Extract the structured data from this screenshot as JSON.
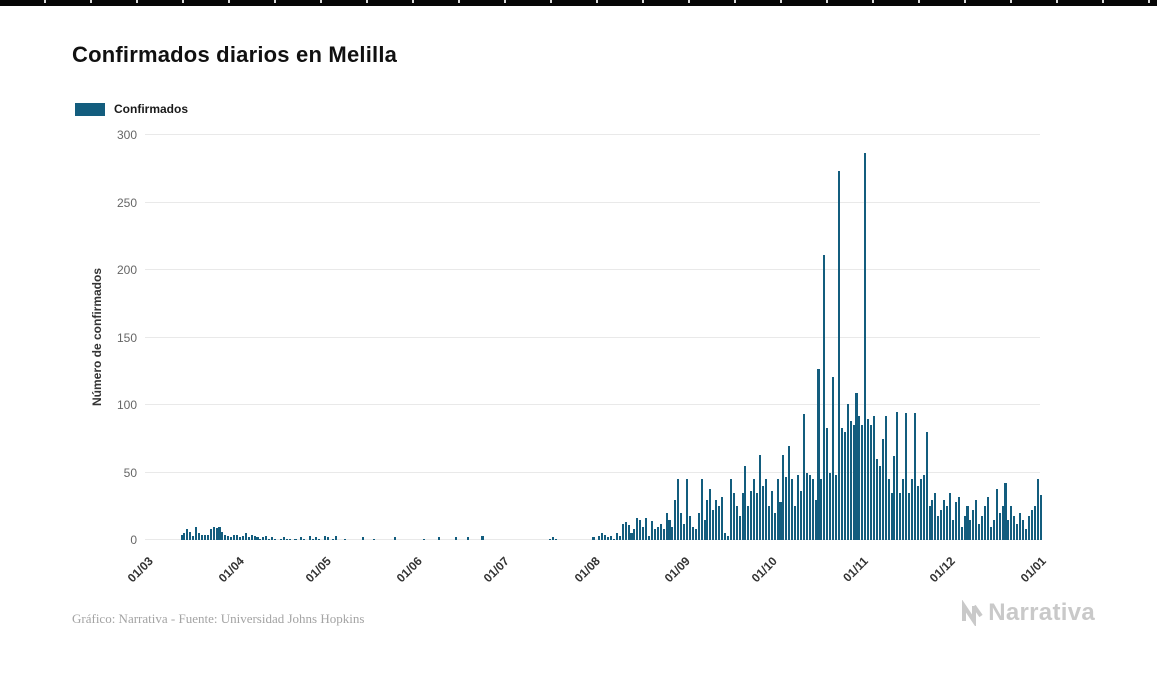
{
  "title": "Confirmados diarios en Melilla",
  "legend": {
    "label": "Confirmados",
    "color": "#135d7e"
  },
  "footer": {
    "credit": "Gráfico: Narrativa - Fuente: Universidad Johns Hopkins"
  },
  "logo": {
    "text": "Narrativa"
  },
  "chart_data": {
    "type": "bar",
    "title": "Confirmados diarios en Melilla",
    "xlabel": "",
    "ylabel": "Número de confirmados",
    "ylim": [
      0,
      300
    ],
    "yticks": [
      0,
      50,
      100,
      150,
      200,
      250,
      300
    ],
    "grid": true,
    "legend_position": "top-left",
    "bar_color": "#135d7e",
    "x_start_date": "01/03",
    "x_tick_labels": [
      "01/03",
      "01/04",
      "01/05",
      "01/06",
      "01/07",
      "01/08",
      "01/09",
      "01/10",
      "01/11",
      "01/12",
      "01/01"
    ],
    "x_tick_indices": [
      0,
      31,
      61,
      92,
      122,
      153,
      184,
      214,
      245,
      275,
      306
    ],
    "series": [
      {
        "name": "Confirmados",
        "values": [
          0,
          0,
          0,
          0,
          0,
          0,
          0,
          0,
          0,
          0,
          0,
          0,
          4,
          5,
          8,
          6,
          3,
          10,
          5,
          4,
          4,
          4,
          8,
          10,
          9,
          10,
          6,
          4,
          3,
          2,
          4,
          4,
          2,
          3,
          5,
          2,
          4,
          3,
          2,
          1,
          2,
          3,
          1,
          2,
          1,
          0,
          1,
          2,
          1,
          1,
          0,
          1,
          0,
          2,
          1,
          0,
          3,
          1,
          2,
          1,
          0,
          3,
          2,
          0,
          1,
          3,
          0,
          0,
          1,
          0,
          0,
          0,
          0,
          0,
          2,
          0,
          0,
          0,
          1,
          0,
          0,
          0,
          0,
          0,
          0,
          2,
          0,
          0,
          0,
          0,
          0,
          0,
          0,
          0,
          0,
          1,
          0,
          0,
          0,
          0,
          2,
          0,
          0,
          0,
          0,
          0,
          2,
          0,
          0,
          0,
          2,
          0,
          0,
          0,
          0,
          3,
          0,
          0,
          0,
          0,
          0,
          0,
          0,
          0,
          0,
          0,
          0,
          0,
          0,
          0,
          0,
          0,
          0,
          0,
          0,
          0,
          0,
          0,
          1,
          2,
          1,
          0,
          0,
          0,
          0,
          0,
          0,
          0,
          0,
          0,
          0,
          0,
          0,
          2,
          0,
          3,
          5,
          4,
          2,
          3,
          1,
          5,
          3,
          12,
          13,
          11,
          5,
          8,
          16,
          15,
          10,
          16,
          3,
          14,
          8,
          10,
          12,
          8,
          20,
          15,
          10,
          30,
          45,
          20,
          12,
          45,
          18,
          10,
          8,
          20,
          45,
          15,
          30,
          38,
          22,
          30,
          25,
          32,
          5,
          3,
          45,
          35,
          25,
          18,
          35,
          55,
          25,
          36,
          45,
          35,
          63,
          40,
          45,
          25,
          36,
          20,
          45,
          28,
          63,
          47,
          70,
          45,
          25,
          48,
          36,
          93,
          50,
          48,
          45,
          30,
          127,
          45,
          211,
          83,
          50,
          121,
          48,
          273,
          83,
          80,
          101,
          88,
          85,
          109,
          92,
          85,
          287,
          90,
          85,
          92,
          60,
          55,
          75,
          92,
          45,
          35,
          62,
          95,
          35,
          45,
          94,
          35,
          45,
          94,
          40,
          45,
          48,
          80,
          25,
          30,
          35,
          18,
          22,
          30,
          25,
          35,
          15,
          28,
          32,
          10,
          18,
          25,
          15,
          22,
          30,
          12,
          18,
          25,
          32,
          10,
          15,
          38,
          20,
          25,
          42,
          15,
          25,
          18,
          12,
          20,
          15,
          8,
          18,
          22,
          25,
          45,
          33
        ]
      }
    ]
  }
}
